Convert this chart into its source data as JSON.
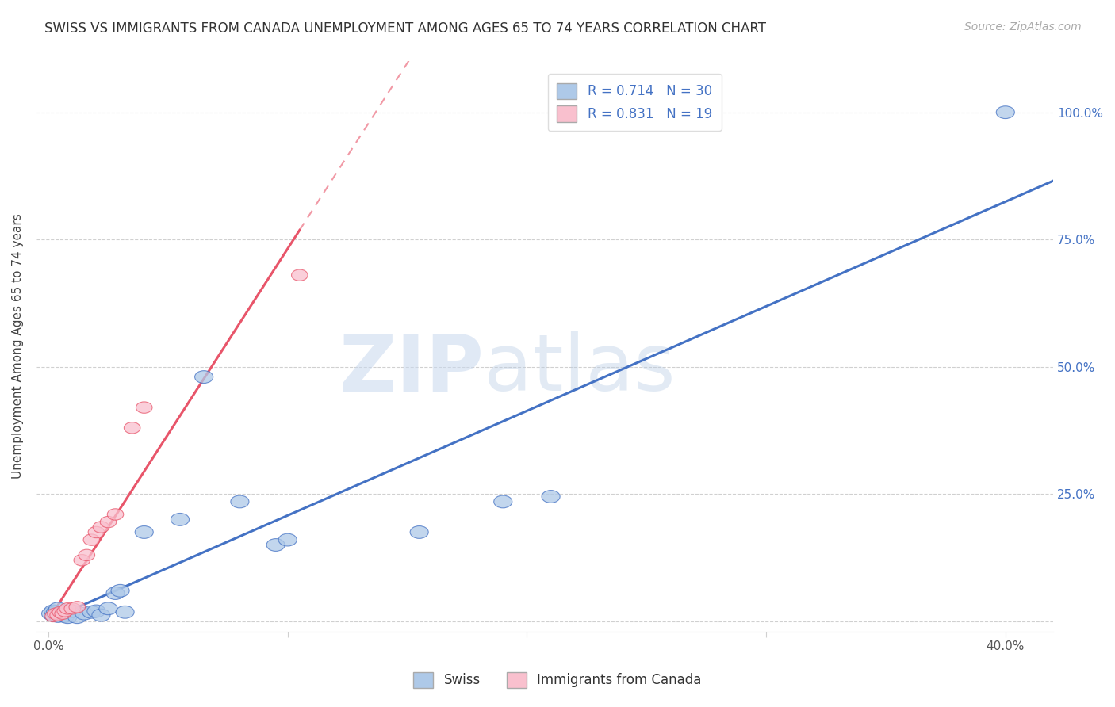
{
  "title": "SWISS VS IMMIGRANTS FROM CANADA UNEMPLOYMENT AMONG AGES 65 TO 74 YEARS CORRELATION CHART",
  "source": "Source: ZipAtlas.com",
  "xlabel_ticks": [
    "0.0%",
    "",
    "",
    "",
    "40.0%"
  ],
  "xlabel_tick_vals": [
    0.0,
    0.1,
    0.2,
    0.3,
    0.4
  ],
  "ylabel": "Unemployment Among Ages 65 to 74 years",
  "ylabel_ticks": [
    "100.0%",
    "75.0%",
    "50.0%",
    "25.0%",
    ""
  ],
  "ylabel_tick_vals": [
    1.0,
    0.75,
    0.5,
    0.25,
    0.0
  ],
  "xlim": [
    -0.005,
    0.42
  ],
  "ylim": [
    -0.02,
    1.1
  ],
  "swiss_R": 0.714,
  "swiss_N": 30,
  "canada_R": 0.831,
  "canada_N": 19,
  "swiss_color": "#aec9e8",
  "canada_color": "#f9c0ce",
  "swiss_line_color": "#4472c4",
  "canada_line_color": "#e8556a",
  "watermark_zip": "ZIP",
  "watermark_atlas": "atlas",
  "legend_swiss_label": "Swiss",
  "legend_canada_label": "Immigrants from Canada",
  "swiss_x": [
    0.001,
    0.002,
    0.002,
    0.003,
    0.004,
    0.004,
    0.005,
    0.006,
    0.007,
    0.008,
    0.01,
    0.012,
    0.015,
    0.018,
    0.02,
    0.022,
    0.025,
    0.028,
    0.03,
    0.032,
    0.04,
    0.055,
    0.065,
    0.08,
    0.095,
    0.1,
    0.155,
    0.19,
    0.21,
    0.4
  ],
  "swiss_y": [
    0.015,
    0.012,
    0.02,
    0.018,
    0.01,
    0.025,
    0.015,
    0.012,
    0.01,
    0.008,
    0.02,
    0.008,
    0.015,
    0.018,
    0.02,
    0.012,
    0.025,
    0.055,
    0.06,
    0.018,
    0.175,
    0.2,
    0.48,
    0.235,
    0.15,
    0.16,
    0.175,
    0.235,
    0.245,
    1.0
  ],
  "canada_x": [
    0.002,
    0.003,
    0.004,
    0.005,
    0.006,
    0.007,
    0.008,
    0.01,
    0.012,
    0.014,
    0.016,
    0.018,
    0.02,
    0.022,
    0.025,
    0.028,
    0.035,
    0.04,
    0.105
  ],
  "canada_y": [
    0.01,
    0.015,
    0.012,
    0.018,
    0.015,
    0.02,
    0.025,
    0.025,
    0.028,
    0.12,
    0.13,
    0.16,
    0.175,
    0.185,
    0.195,
    0.21,
    0.38,
    0.42,
    0.68
  ],
  "grid_color": "#d0d0d0",
  "tick_color": "#999999",
  "right_label_color": "#4472c4"
}
